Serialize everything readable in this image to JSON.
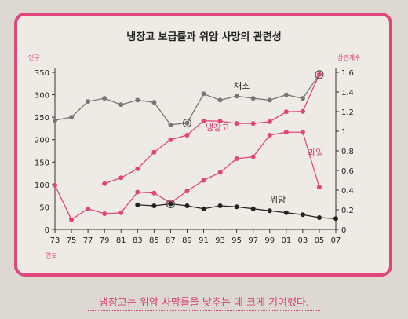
{
  "caption": "냉장고는 위암 사망률을 낮추는 데 크게 기여했다.",
  "colors": {
    "frame": "#e0457c",
    "pink": "#e0457c",
    "gray": "#777777",
    "black": "#222222"
  },
  "chart_data": {
    "type": "line",
    "title": "냉장고 보급률과 위암 사망의 관련성",
    "xlabel": "연도",
    "ylabel_left": "인구",
    "ylabel_right": "상관계수",
    "x_ticks": [
      "73",
      "75",
      "77",
      "79",
      "81",
      "83",
      "85",
      "87",
      "89",
      "91",
      "93",
      "95",
      "97",
      "99",
      "01",
      "03",
      "05",
      "07"
    ],
    "ylim_left": [
      0,
      350
    ],
    "yticks_left": [
      0,
      50,
      100,
      150,
      200,
      250,
      300,
      350
    ],
    "ylim_right": [
      0,
      1.6
    ],
    "yticks_right": [
      "0",
      "0.2",
      "0.4",
      "0.6",
      "0.8",
      "1",
      "1.2",
      "1.4",
      "1.6"
    ],
    "series": [
      {
        "name": "채소",
        "axis": "left",
        "color": "#777777",
        "x": [
          73,
          75,
          77,
          79,
          81,
          83,
          85,
          87,
          89,
          91,
          93,
          95,
          97,
          99,
          101,
          103,
          105
        ],
        "values": [
          243,
          250,
          285,
          292,
          278,
          288,
          283,
          233,
          237,
          302,
          288,
          297,
          292,
          288,
          300,
          292,
          345
        ]
      },
      {
        "name": "냉장고",
        "axis": "left",
        "color": "#e0457c",
        "x": [
          79,
          81,
          83,
          85,
          87,
          89,
          91,
          93,
          95,
          97,
          99,
          101,
          103,
          105
        ],
        "values": [
          102,
          115,
          135,
          172,
          200,
          210,
          242,
          241,
          236,
          236,
          240,
          262,
          263,
          345
        ]
      },
      {
        "name": "과일",
        "axis": "right",
        "color": "#e0457c",
        "x": [
          73,
          75,
          77,
          79,
          81,
          83,
          85,
          87,
          89,
          91,
          93,
          95,
          97,
          99,
          101,
          103,
          105
        ],
        "values": [
          0.45,
          0.1,
          0.21,
          0.16,
          0.17,
          0.38,
          0.37,
          0.27,
          0.39,
          0.5,
          0.58,
          0.72,
          0.74,
          0.96,
          0.99,
          0.99,
          0.43
        ]
      },
      {
        "name": "위암",
        "axis": "right",
        "color": "#222222",
        "x": [
          83,
          85,
          87,
          89,
          91,
          93,
          95,
          97,
          99,
          101,
          103,
          105,
          107
        ],
        "values": [
          0.25,
          0.24,
          0.26,
          0.24,
          0.21,
          0.24,
          0.23,
          0.21,
          0.19,
          0.17,
          0.15,
          0.12,
          0.11
        ]
      }
    ]
  }
}
